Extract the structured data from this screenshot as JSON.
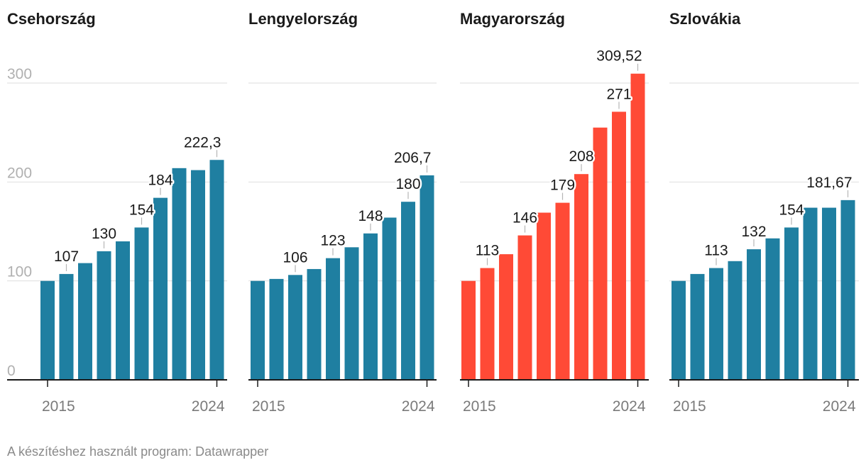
{
  "chart_data": [
    {
      "type": "bar",
      "title": "Csehország",
      "color": "#1f7fa1",
      "ylim": [
        0,
        300
      ],
      "yticks": [
        "0",
        "100",
        "200",
        "300"
      ],
      "xticks": [
        "2015",
        "2024"
      ],
      "categories": [
        "2015",
        "2016",
        "2017",
        "2018",
        "2019",
        "2020",
        "2021",
        "2022",
        "2023",
        "2024"
      ],
      "values": [
        100,
        107,
        118,
        130,
        140,
        154,
        184,
        214,
        212,
        222.3
      ],
      "labels": [
        "",
        "107",
        "",
        "130",
        "",
        "154",
        "184",
        "",
        "",
        "222,3"
      ]
    },
    {
      "type": "bar",
      "title": "Lengyelország",
      "color": "#1f7fa1",
      "ylim": [
        0,
        300
      ],
      "yticks": [
        "0",
        "100",
        "200",
        "300"
      ],
      "xticks": [
        "2015",
        "2024"
      ],
      "categories": [
        "2015",
        "2016",
        "2017",
        "2018",
        "2019",
        "2020",
        "2021",
        "2022",
        "2023",
        "2024"
      ],
      "values": [
        100,
        102,
        106,
        112,
        123,
        134,
        148,
        164,
        180,
        206.7
      ],
      "labels": [
        "",
        "",
        "106",
        "",
        "123",
        "",
        "148",
        "",
        "180",
        "206,7"
      ]
    },
    {
      "type": "bar",
      "title": "Magyarország",
      "color": "#ff4a36",
      "ylim": [
        0,
        300
      ],
      "yticks": [
        "0",
        "100",
        "200",
        "300"
      ],
      "xticks": [
        "2015",
        "2024"
      ],
      "categories": [
        "2015",
        "2016",
        "2017",
        "2018",
        "2019",
        "2020",
        "2021",
        "2022",
        "2023",
        "2024"
      ],
      "values": [
        100,
        113,
        127,
        146,
        169,
        179,
        208,
        255,
        271,
        309.52
      ],
      "labels": [
        "",
        "113",
        "",
        "146",
        "",
        "179",
        "208",
        "",
        "271",
        "309,52"
      ]
    },
    {
      "type": "bar",
      "title": "Szlovákia",
      "color": "#1f7fa1",
      "ylim": [
        0,
        300
      ],
      "yticks": [
        "0",
        "100",
        "200",
        "300"
      ],
      "xticks": [
        "2015",
        "2024"
      ],
      "categories": [
        "2015",
        "2016",
        "2017",
        "2018",
        "2019",
        "2020",
        "2021",
        "2022",
        "2023",
        "2024"
      ],
      "values": [
        100,
        107,
        113,
        120,
        132,
        143,
        154,
        174,
        174,
        181.67
      ],
      "labels": [
        "",
        "",
        "113",
        "",
        "132",
        "",
        "154",
        "",
        "",
        "181,67"
      ]
    }
  ],
  "footer": {
    "credit": "A készítéshez használt program: Datawrapper"
  }
}
